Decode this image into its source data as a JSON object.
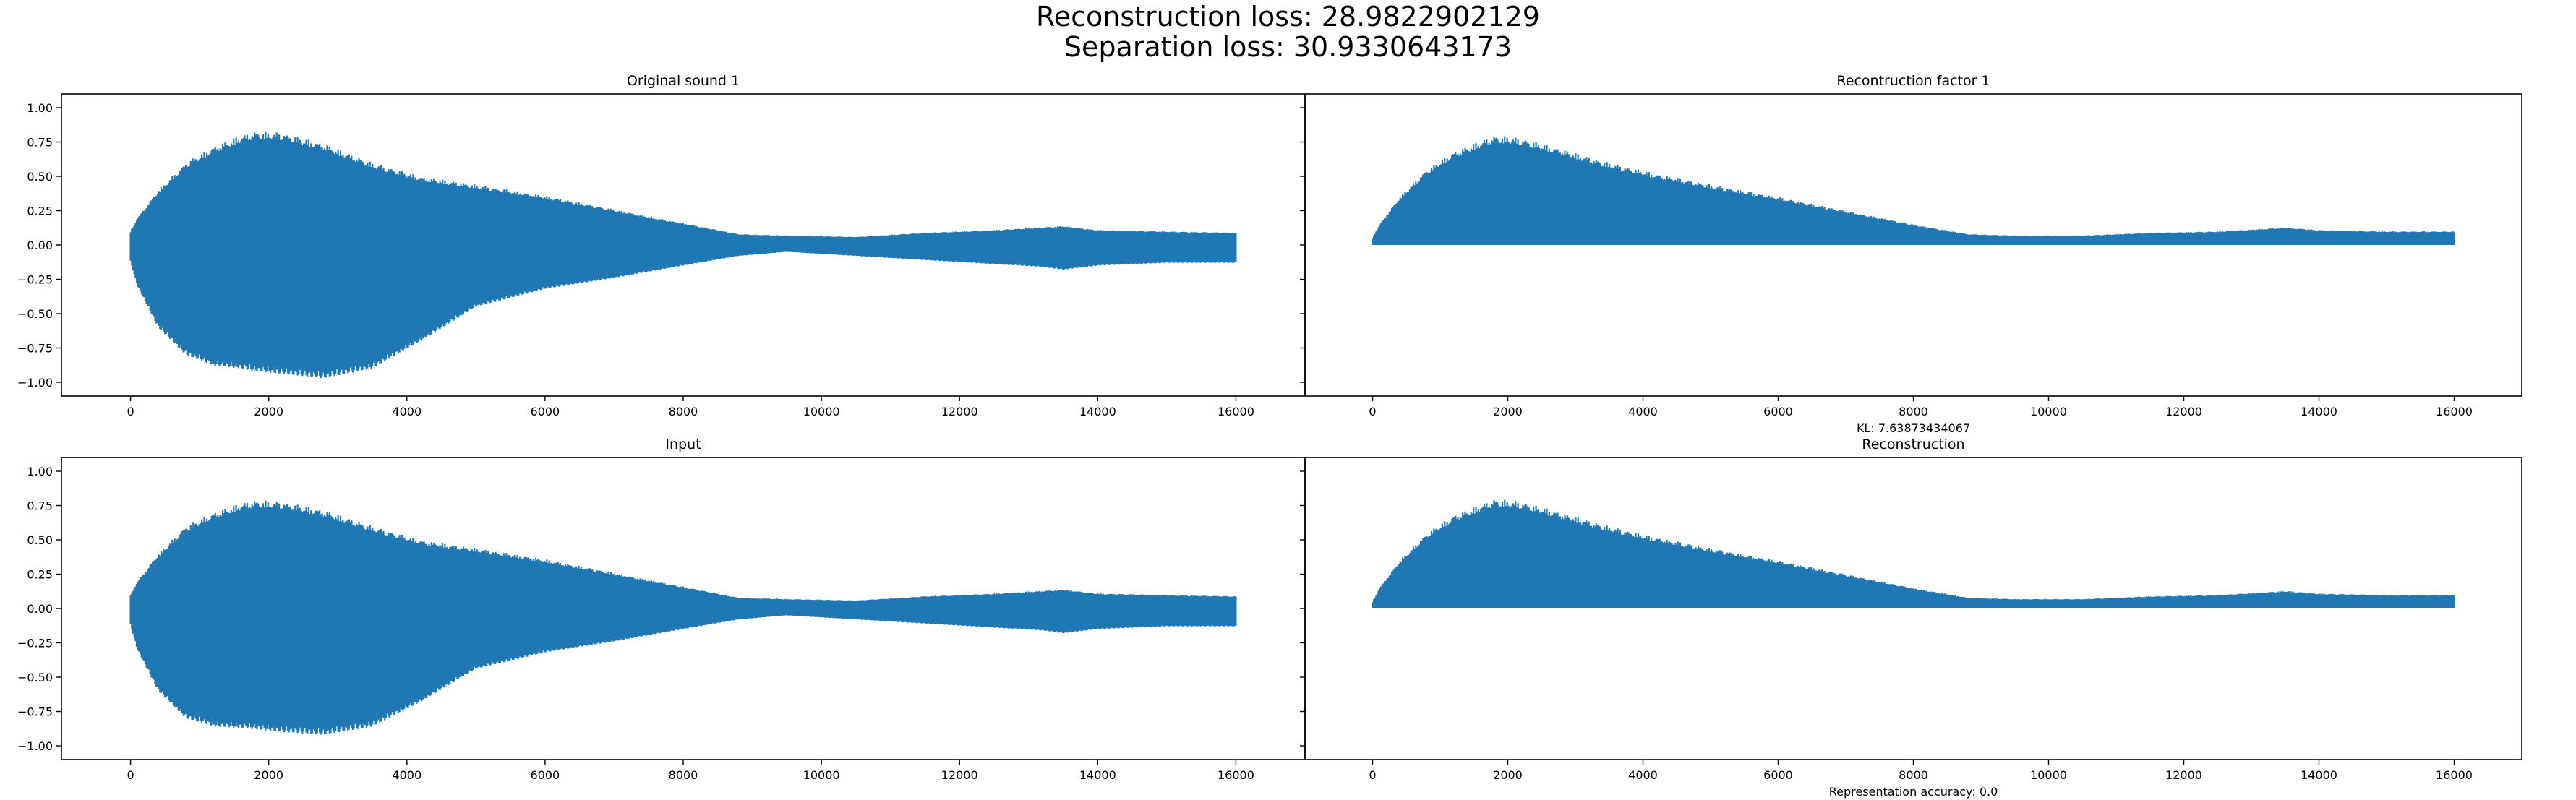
{
  "figure": {
    "suptitle_line1": "Reconstruction loss: 28.9822902129",
    "suptitle_line2": "Separation loss: 30.9330643173",
    "color": "#1f77b4"
  },
  "chart_data": [
    {
      "type": "area",
      "panel": "top-left",
      "title": "Original sound 1",
      "xlabel": "",
      "ylabel": "",
      "xlim": [
        -1000,
        17000
      ],
      "ylim": [
        -1.1,
        1.1
      ],
      "xticks": [
        0,
        2000,
        4000,
        6000,
        8000,
        10000,
        12000,
        14000,
        16000
      ],
      "yticks": [
        -1.0,
        -0.75,
        -0.5,
        -0.25,
        0.0,
        0.25,
        0.5,
        0.75,
        1.0
      ],
      "ytick_labels": [
        "−1.00",
        "−0.75",
        "−0.50",
        "−0.25",
        "0.00",
        "0.25",
        "0.50",
        "0.75",
        "1.00"
      ],
      "grid": false,
      "envelope_x": [
        0,
        100,
        400,
        800,
        1200,
        1600,
        1800,
        2200,
        2800,
        3500,
        4200,
        5000,
        6000,
        7000,
        8000,
        8800,
        9500,
        10500,
        11500,
        12500,
        13200,
        13500,
        14000,
        15000,
        16000
      ],
      "envelope_upper": [
        0.1,
        0.2,
        0.4,
        0.6,
        0.72,
        0.8,
        0.83,
        0.82,
        0.74,
        0.6,
        0.5,
        0.44,
        0.36,
        0.26,
        0.16,
        0.08,
        0.07,
        0.06,
        0.09,
        0.11,
        0.13,
        0.14,
        0.11,
        0.1,
        0.09
      ],
      "envelope_lower": [
        -0.12,
        -0.3,
        -0.6,
        -0.8,
        -0.88,
        -0.9,
        -0.92,
        -0.94,
        -0.97,
        -0.9,
        -0.7,
        -0.45,
        -0.32,
        -0.24,
        -0.15,
        -0.08,
        -0.05,
        -0.08,
        -0.11,
        -0.14,
        -0.16,
        -0.18,
        -0.15,
        -0.13,
        -0.13
      ],
      "xlabel_note": ""
    },
    {
      "type": "area",
      "panel": "top-right",
      "title": "Recontruction factor 1",
      "xlabel": "",
      "ylabel": "",
      "xlim": [
        -1000,
        17000
      ],
      "ylim": [
        -1.1,
        1.1
      ],
      "xticks": [
        0,
        2000,
        4000,
        6000,
        8000,
        10000,
        12000,
        14000,
        16000
      ],
      "yticks": [],
      "ytick_labels": [],
      "grid": false,
      "envelope_x": [
        0,
        100,
        400,
        800,
        1200,
        1600,
        1800,
        2200,
        2800,
        3500,
        4200,
        5000,
        6000,
        7000,
        8000,
        8800,
        9500,
        10500,
        11500,
        12500,
        13200,
        13500,
        14000,
        15000,
        16000
      ],
      "envelope_upper": [
        0.05,
        0.15,
        0.35,
        0.55,
        0.68,
        0.76,
        0.8,
        0.78,
        0.7,
        0.6,
        0.52,
        0.44,
        0.35,
        0.25,
        0.15,
        0.08,
        0.07,
        0.07,
        0.09,
        0.1,
        0.12,
        0.13,
        0.11,
        0.1,
        0.1
      ],
      "envelope_lower": [
        0,
        0,
        0,
        0,
        0,
        0,
        0,
        0,
        0,
        0,
        0,
        0,
        0,
        0,
        0,
        0,
        0,
        0,
        0,
        0,
        0,
        0,
        0,
        0,
        0
      ],
      "xlabel_note": "KL: 7.63873434067"
    },
    {
      "type": "area",
      "panel": "bottom-left",
      "title": "Input",
      "xlabel": "",
      "ylabel": "",
      "xlim": [
        -1000,
        17000
      ],
      "ylim": [
        -1.1,
        1.1
      ],
      "xticks": [
        0,
        2000,
        4000,
        6000,
        8000,
        10000,
        12000,
        14000,
        16000
      ],
      "yticks": [
        -1.0,
        -0.75,
        -0.5,
        -0.25,
        0.0,
        0.25,
        0.5,
        0.75,
        1.0
      ],
      "ytick_labels": [
        "−1.00",
        "−0.75",
        "−0.50",
        "−0.25",
        "0.00",
        "0.25",
        "0.50",
        "0.75",
        "1.00"
      ],
      "grid": false,
      "envelope_x": [
        0,
        100,
        400,
        800,
        1200,
        1600,
        1800,
        2200,
        2800,
        3500,
        4200,
        5000,
        6000,
        7000,
        8000,
        8800,
        9500,
        10500,
        11500,
        12500,
        13200,
        13500,
        14000,
        15000,
        16000
      ],
      "envelope_upper": [
        0.1,
        0.2,
        0.4,
        0.6,
        0.7,
        0.77,
        0.79,
        0.78,
        0.72,
        0.6,
        0.5,
        0.44,
        0.36,
        0.26,
        0.16,
        0.08,
        0.07,
        0.06,
        0.09,
        0.11,
        0.13,
        0.14,
        0.11,
        0.1,
        0.09
      ],
      "envelope_lower": [
        -0.12,
        -0.3,
        -0.6,
        -0.8,
        -0.86,
        -0.87,
        -0.88,
        -0.9,
        -0.92,
        -0.86,
        -0.68,
        -0.44,
        -0.32,
        -0.24,
        -0.15,
        -0.08,
        -0.05,
        -0.08,
        -0.11,
        -0.14,
        -0.16,
        -0.18,
        -0.15,
        -0.13,
        -0.13
      ],
      "xlabel_note": ""
    },
    {
      "type": "area",
      "panel": "bottom-right",
      "title": "Reconstruction",
      "xlabel": "",
      "ylabel": "",
      "xlim": [
        -1000,
        17000
      ],
      "ylim": [
        -1.1,
        1.1
      ],
      "xticks": [
        0,
        2000,
        4000,
        6000,
        8000,
        10000,
        12000,
        14000,
        16000
      ],
      "yticks": [],
      "ytick_labels": [],
      "grid": false,
      "envelope_x": [
        0,
        100,
        400,
        800,
        1200,
        1600,
        1800,
        2200,
        2800,
        3500,
        4200,
        5000,
        6000,
        7000,
        8000,
        8800,
        9500,
        10500,
        11500,
        12500,
        13200,
        13500,
        14000,
        15000,
        16000
      ],
      "envelope_upper": [
        0.05,
        0.15,
        0.35,
        0.55,
        0.68,
        0.76,
        0.8,
        0.78,
        0.7,
        0.6,
        0.52,
        0.44,
        0.35,
        0.25,
        0.15,
        0.08,
        0.07,
        0.07,
        0.09,
        0.1,
        0.12,
        0.13,
        0.11,
        0.1,
        0.1
      ],
      "envelope_lower": [
        0,
        0,
        0,
        0,
        0,
        0,
        0,
        0,
        0,
        0,
        0,
        0,
        0,
        0,
        0,
        0,
        0,
        0,
        0,
        0,
        0,
        0,
        0,
        0,
        0
      ],
      "xlabel_note": "Representation accuracy: 0.0"
    }
  ]
}
